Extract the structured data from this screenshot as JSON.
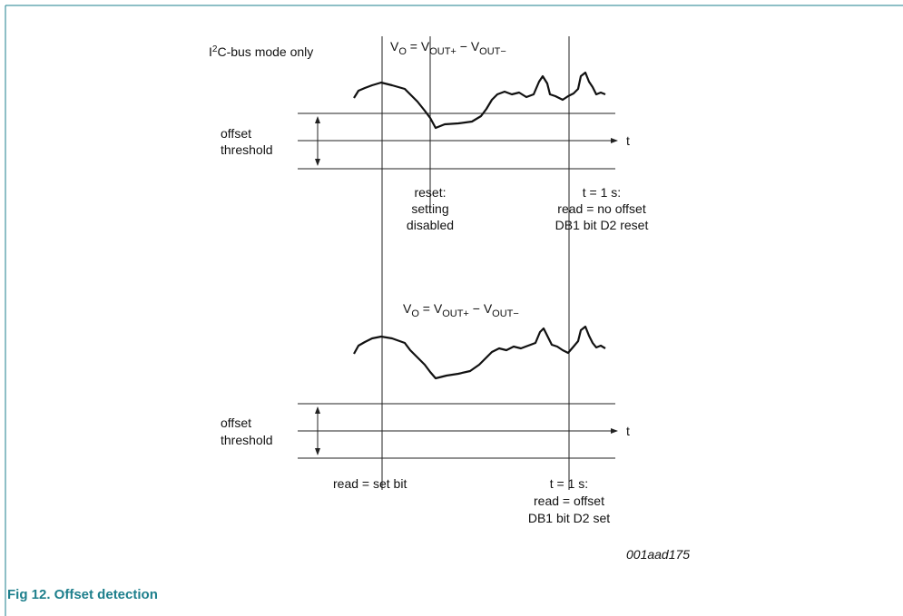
{
  "mode_label": [
    "I",
    "2",
    "C-bus mode only"
  ],
  "formula_top": [
    "V",
    "O",
    " = V",
    "OUT+",
    " − V",
    "OUT−"
  ],
  "formula_bottom": [
    "V",
    "O",
    " = V",
    "OUT+",
    " − V",
    "OUT−"
  ],
  "top": {
    "threshold": [
      "offset",
      "threshold"
    ],
    "axis": "t",
    "reset_note": [
      "reset:",
      "setting",
      "disabled"
    ],
    "time_note": [
      "t = 1 s:",
      "read = no offset",
      "DB1 bit D2 reset"
    ]
  },
  "bottom": {
    "threshold": [
      "offset",
      "threshold"
    ],
    "axis": "t",
    "read_note": "read = set bit",
    "time_note": [
      "t = 1 s:",
      "read = offset",
      "DB1 bit D2 set"
    ]
  },
  "figure_id": "001aad175",
  "caption": "Fig 12. Offset detection"
}
